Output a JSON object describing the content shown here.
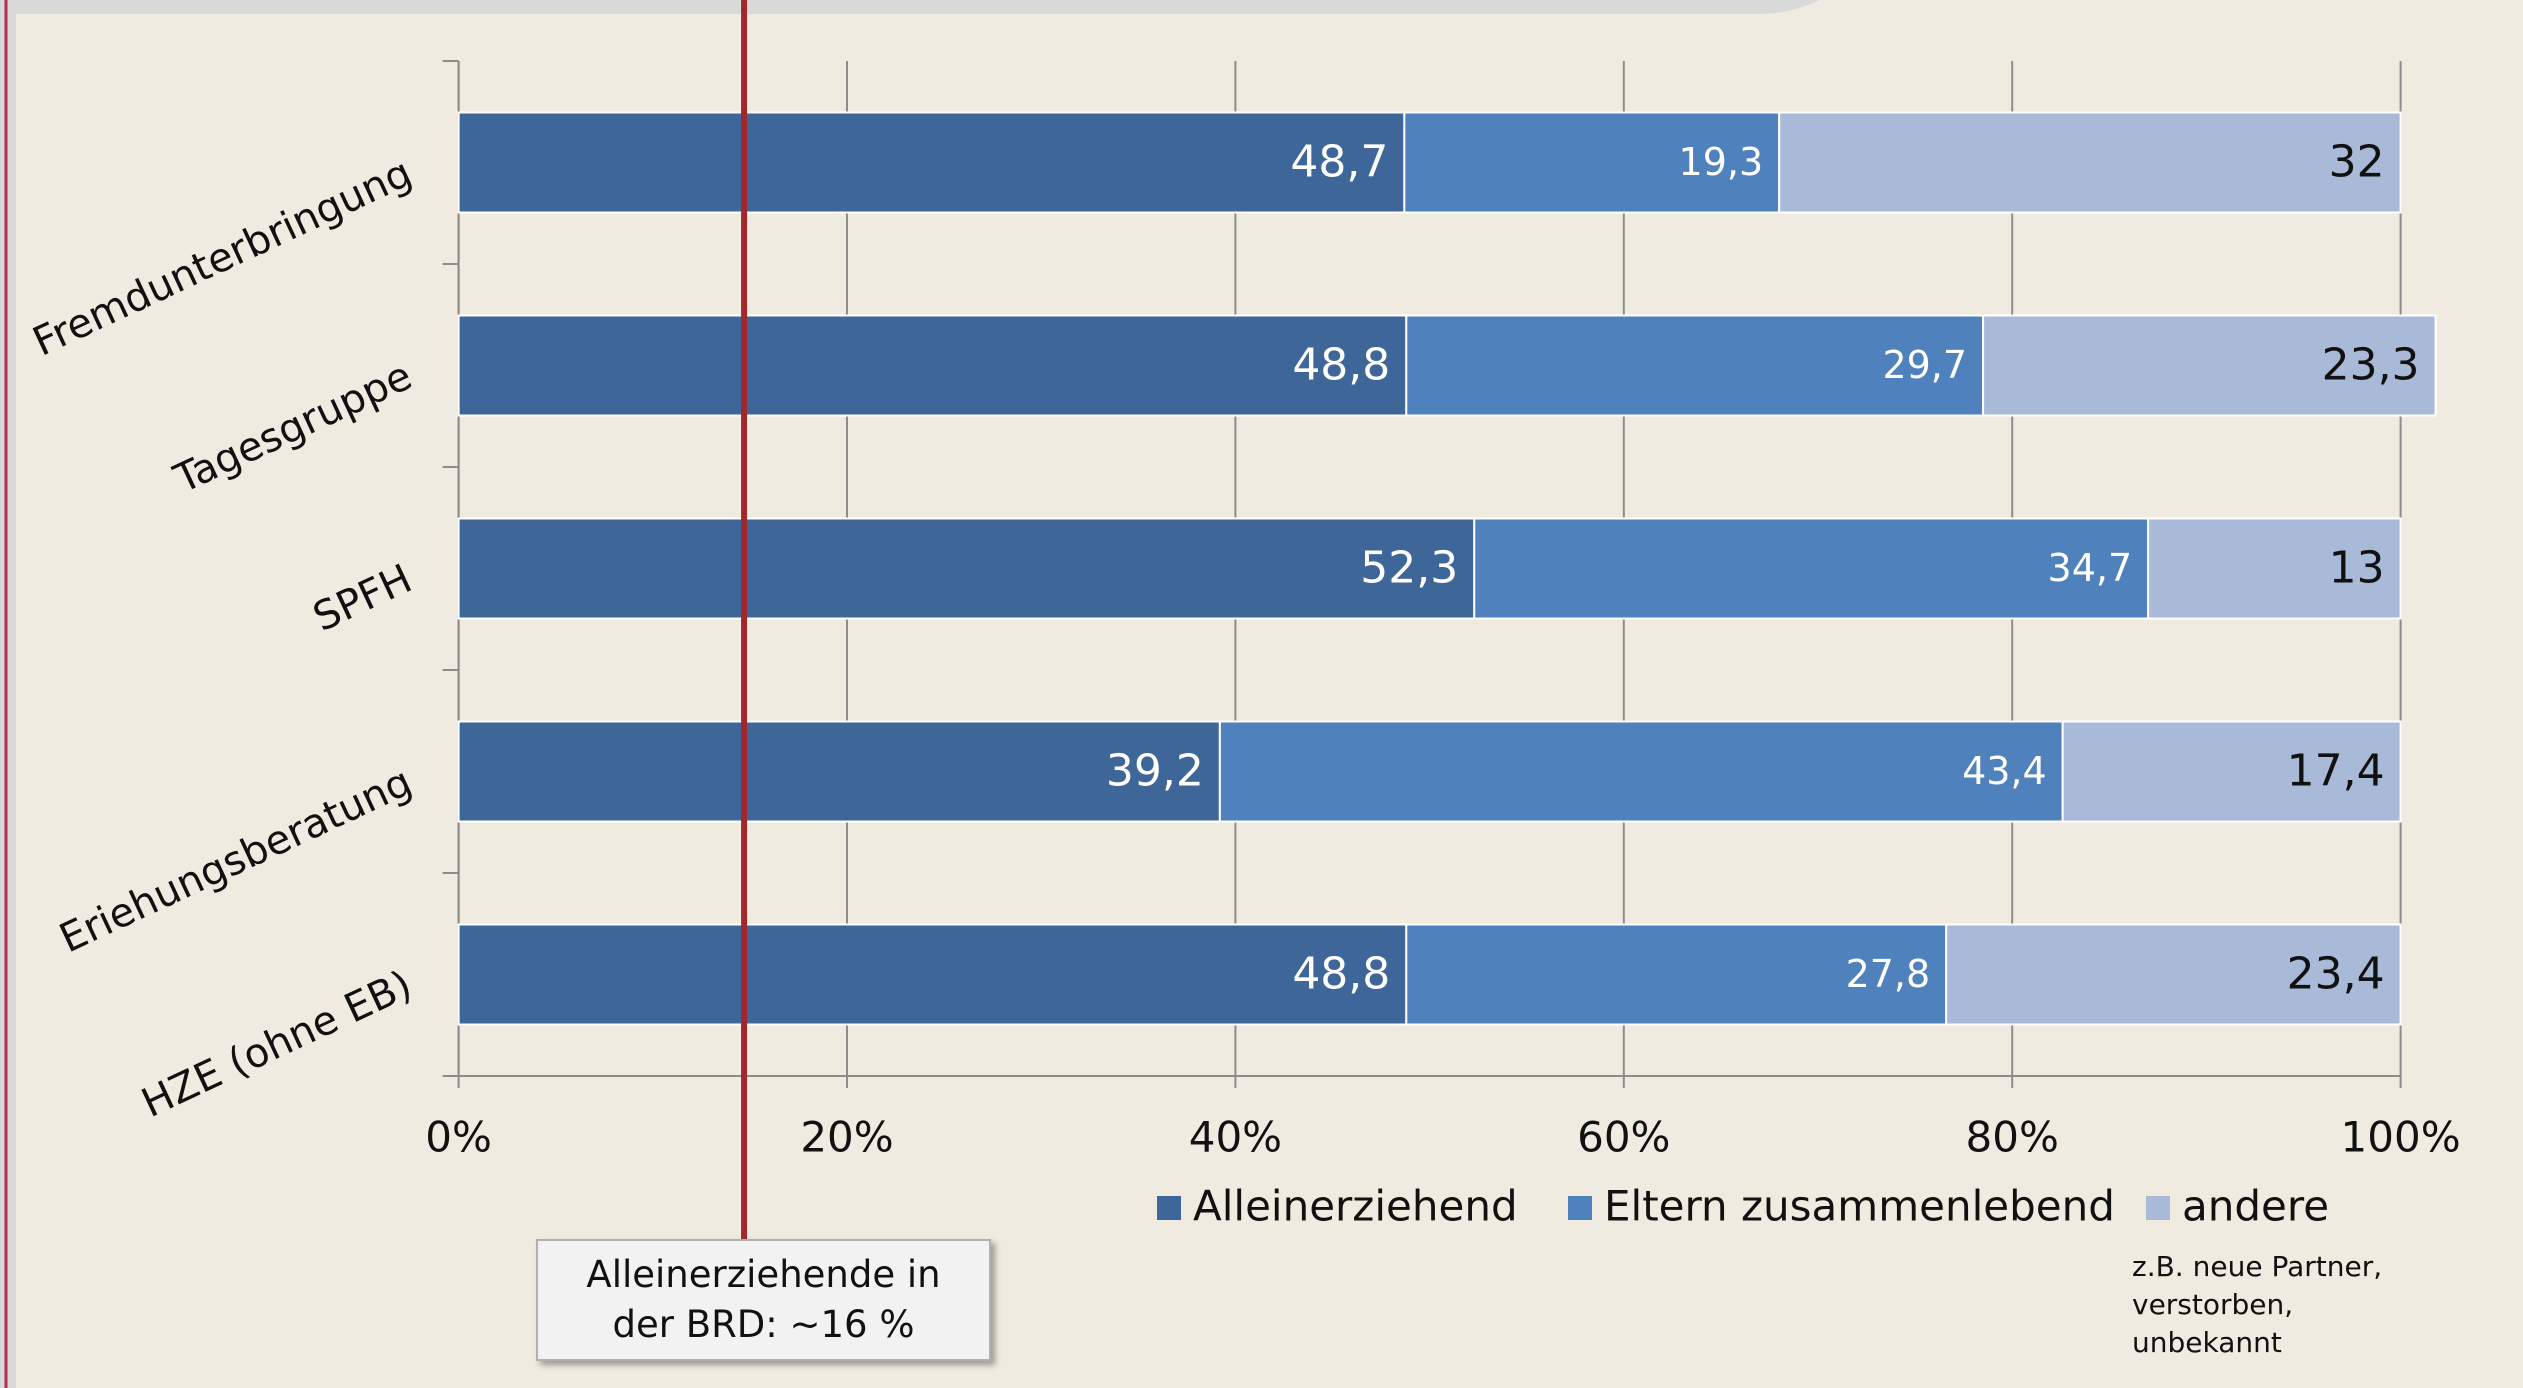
{
  "chart_data": {
    "type": "stacked_barh",
    "categories": [
      "Fremdunterbringung",
      "Tagesgruppe",
      "SPFH",
      "Eriehungsberatung",
      "HZE (ohne EB)"
    ],
    "series": [
      {
        "name": "Alleinerziehend",
        "color": "#3f6699",
        "values": [
          48.7,
          48.8,
          52.3,
          39.2,
          48.8
        ],
        "value_labels": [
          "48,7",
          "48,8",
          "52,3",
          "39,2",
          "48,8"
        ]
      },
      {
        "name": "Eltern zusammenlebend",
        "color": "#4f81bd",
        "values": [
          19.3,
          29.7,
          34.7,
          43.4,
          27.8
        ],
        "value_labels": [
          "19,3",
          "29,7",
          "34,7",
          "43,4",
          "27,8"
        ]
      },
      {
        "name": "andere",
        "color": "#a9bad9",
        "values": [
          32,
          23.3,
          13,
          17.4,
          23.4
        ],
        "value_labels": [
          "32",
          "23,3",
          "13",
          "17,4",
          "23,4"
        ]
      }
    ],
    "xlim": [
      0,
      100
    ],
    "xticks": [
      {
        "value": 0,
        "label": "0%"
      },
      {
        "value": 20,
        "label": "20%"
      },
      {
        "value": 40,
        "label": "40%"
      },
      {
        "value": 60,
        "label": "60%"
      },
      {
        "value": 80,
        "label": "80%"
      },
      {
        "value": 100,
        "label": "100%"
      }
    ],
    "grid": true,
    "reference_line": {
      "value": 14.7,
      "color": "#a0282d",
      "label": "Alleinerziehende in der BRD: ~16 %"
    },
    "legend_note": "z.B. neue Partner, verstorben, unbekannt"
  }
}
